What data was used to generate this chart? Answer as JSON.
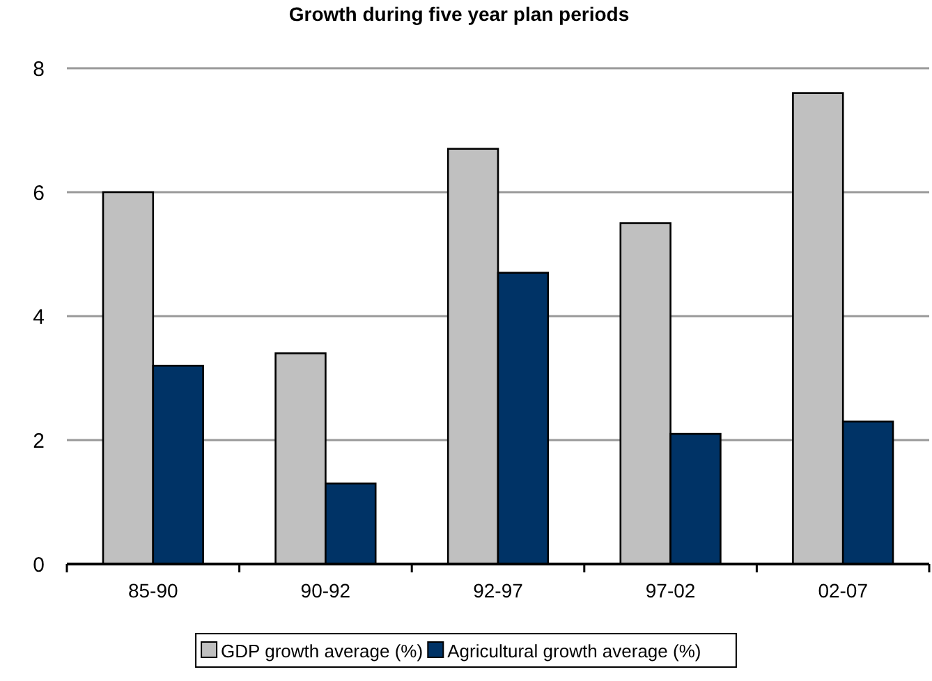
{
  "chart_data": {
    "type": "bar",
    "title": "Growth during five year plan periods",
    "categories": [
      "85-90",
      "90-92",
      "92-97",
      "97-02",
      "02-07"
    ],
    "series": [
      {
        "name": "GDP growth average (%)",
        "color": "#c0c0c0",
        "values": [
          6.0,
          3.4,
          6.7,
          5.5,
          7.6
        ]
      },
      {
        "name": "Agricultural growth average (%)",
        "color": "#003366",
        "values": [
          3.2,
          1.3,
          4.7,
          2.1,
          2.3
        ]
      }
    ],
    "ylim": [
      0,
      8
    ],
    "yticks": [
      0,
      2,
      4,
      6,
      8
    ],
    "grid": "y",
    "legend": "bottom"
  }
}
